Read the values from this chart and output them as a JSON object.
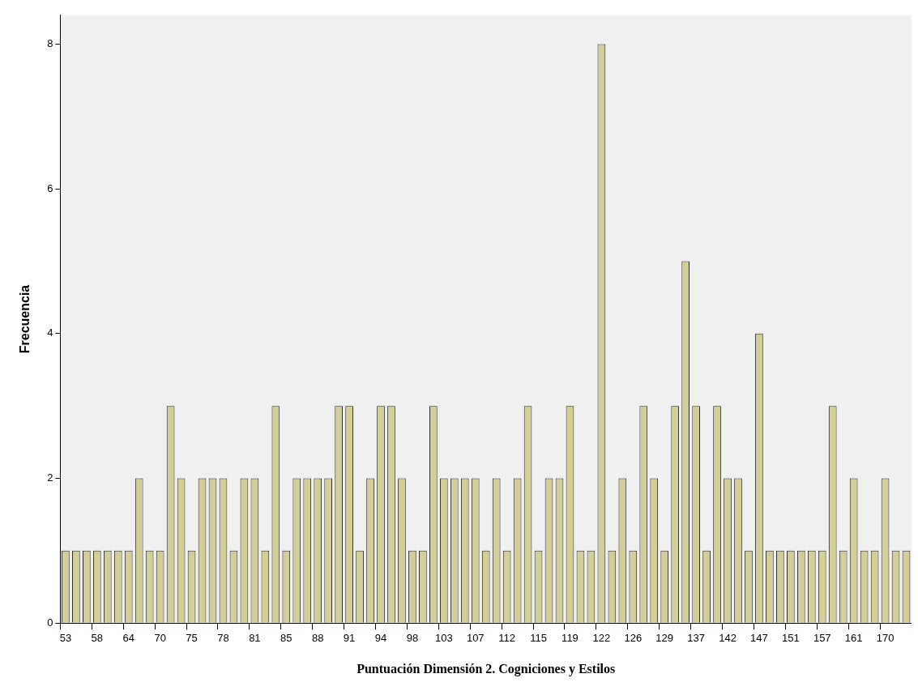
{
  "chart_data": {
    "type": "bar",
    "xlabel": "Puntuación Dimensión 2. Cogniciones y Estilos",
    "ylabel": "Frecuencia",
    "categories": [
      "53",
      null,
      null,
      "58",
      null,
      null,
      "64",
      null,
      null,
      "70",
      null,
      null,
      "75",
      null,
      null,
      "78",
      null,
      null,
      "81",
      null,
      null,
      "85",
      null,
      null,
      "88",
      null,
      null,
      "91",
      null,
      null,
      "94",
      null,
      null,
      "98",
      null,
      null,
      "103",
      null,
      null,
      "107",
      null,
      null,
      "112",
      null,
      null,
      "115",
      null,
      null,
      "119",
      null,
      null,
      "122",
      null,
      null,
      "126",
      null,
      null,
      "129",
      null,
      null,
      "137",
      null,
      null,
      "142",
      null,
      null,
      "147",
      null,
      null,
      "151",
      null,
      null,
      "157",
      null,
      null,
      "161",
      null,
      null,
      "170",
      null,
      null
    ],
    "values": [
      1,
      1,
      1,
      1,
      1,
      1,
      1,
      2,
      1,
      1,
      3,
      2,
      1,
      2,
      2,
      2,
      1,
      2,
      2,
      1,
      3,
      1,
      2,
      2,
      2,
      2,
      3,
      3,
      1,
      2,
      3,
      3,
      2,
      1,
      1,
      3,
      2,
      2,
      2,
      2,
      1,
      2,
      1,
      2,
      3,
      1,
      2,
      2,
      3,
      1,
      1,
      8,
      1,
      2,
      1,
      3,
      2,
      1,
      3,
      5,
      3,
      1,
      3,
      2,
      2,
      1,
      4,
      1,
      1,
      1,
      1,
      1,
      1,
      3,
      1,
      2,
      1,
      1,
      2,
      1,
      1
    ],
    "color": "#d3ce97",
    "ylim": [
      0,
      8.4
    ],
    "yticks": [
      0,
      2,
      4,
      6,
      8
    ],
    "grid": false,
    "legend": false
  }
}
